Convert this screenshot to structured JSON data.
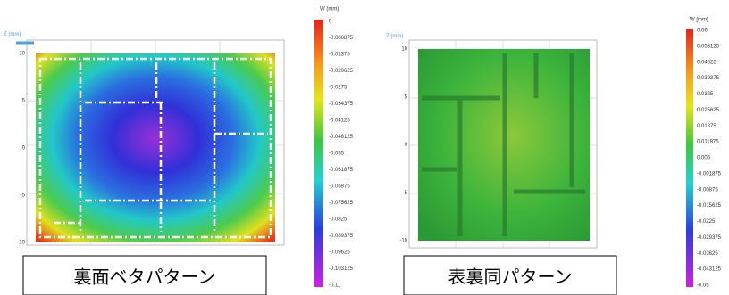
{
  "panels": [
    {
      "axis_label": "Z (mm)",
      "yticks": [
        "10",
        "5",
        "0",
        "-5",
        "-10"
      ],
      "colorbar": {
        "title": "W (mm)",
        "labels": [
          "0",
          "-0.006875",
          "-0.01375",
          "-0.020625",
          "-0.0275",
          "-0.034375",
          "-0.04125",
          "-0.048125",
          "-0.055",
          "-0.061875",
          "-0.06875",
          "-0.075625",
          "-0.0825",
          "-0.089375",
          "-0.09625",
          "-0.103125",
          "-0.11"
        ]
      },
      "caption": "裏面ベタパターン"
    },
    {
      "axis_label": "Z (mm)",
      "yticks": [
        "10",
        "5",
        "0",
        "-5",
        "-10"
      ],
      "colorbar": {
        "title": "W [mm]",
        "labels": [
          "0.06",
          "0.053125",
          "0.04625",
          "0.039375",
          "0.0325",
          "0.025625",
          "0.01875",
          "0.011875",
          "0.005",
          "-0.001875",
          "-0.00875",
          "-0.015625",
          "-0.0225",
          "-0.029375",
          "-0.03625",
          "-0.043125",
          "-0.05"
        ]
      },
      "caption": "表裏同パターン"
    }
  ]
}
